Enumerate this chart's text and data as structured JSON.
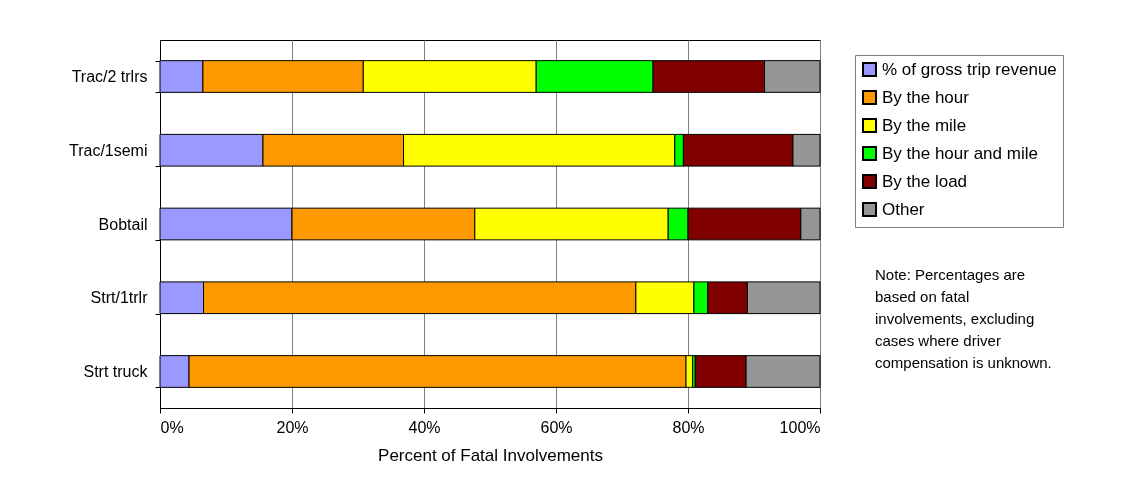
{
  "chart_data": {
    "type": "bar",
    "orientation": "horizontal",
    "stacked": true,
    "categories": [
      "Trac/2 trlrs",
      "Trac/1semi",
      "Bobtail",
      "Strt/1trlr",
      "Strt truck"
    ],
    "series": [
      {
        "name": "% of gross trip revenue",
        "color": "#9999ff",
        "values": [
          6.5,
          15.6,
          20.0,
          6.6,
          4.4
        ]
      },
      {
        "name": "By the hour",
        "color": "#ff9900",
        "values": [
          24.3,
          21.3,
          27.7,
          65.5,
          75.3
        ]
      },
      {
        "name": "By the mile",
        "color": "#ffff00",
        "values": [
          26.2,
          41.1,
          29.3,
          8.8,
          1.0
        ]
      },
      {
        "name": "By the hour and mile",
        "color": "#00ff00",
        "values": [
          17.7,
          1.3,
          3.0,
          2.1,
          0.4
        ]
      },
      {
        "name": "By the load",
        "color": "#800000",
        "values": [
          16.9,
          16.6,
          17.1,
          6.0,
          7.7
        ]
      },
      {
        "name": "Other",
        "color": "#969696",
        "values": [
          8.4,
          4.1,
          2.9,
          11.0,
          11.2
        ]
      }
    ],
    "xlabel": "Percent of Fatal Involvements",
    "xlim": [
      0,
      100
    ],
    "xticks": [
      {
        "value": 0,
        "label": "0%"
      },
      {
        "value": 20,
        "label": "20%"
      },
      {
        "value": 40,
        "label": "40%"
      },
      {
        "value": 60,
        "label": "60%"
      },
      {
        "value": 80,
        "label": "80%"
      },
      {
        "value": 100,
        "label": "100%"
      }
    ],
    "grid": "x",
    "legend": "top right",
    "annotations": [
      "Note: Percentages are based on fatal involvements, excluding cases where driver compensation is unknown."
    ]
  }
}
